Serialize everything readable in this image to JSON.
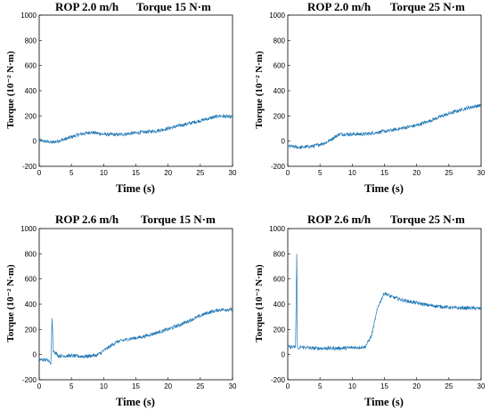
{
  "chart_data": [
    {
      "type": "line",
      "title_rop": "ROP 2.0 m/h",
      "title_torque": "Torque 15 N·m",
      "xlabel": "Time (s)",
      "ylabel": "Torque (10⁻² N·m)",
      "xlim": [
        0,
        30
      ],
      "ylim": [
        -200,
        1000
      ],
      "xticks": [
        0,
        5,
        10,
        15,
        20,
        25,
        30
      ],
      "yticks": [
        -200,
        0,
        200,
        400,
        600,
        800,
        1000
      ],
      "color": "#1f77b4",
      "series": [
        {
          "x": [
            0,
            2,
            4,
            6,
            8,
            10,
            12,
            14,
            16,
            18,
            20,
            22,
            24,
            26,
            28,
            30
          ],
          "y": [
            5,
            -10,
            15,
            50,
            70,
            55,
            50,
            60,
            70,
            80,
            100,
            125,
            150,
            175,
            200,
            190
          ]
        }
      ]
    },
    {
      "type": "line",
      "title_rop": "ROP 2.0 m/h",
      "title_torque": "Torque 25 N·m",
      "xlabel": "Time (s)",
      "ylabel": "Torque (10⁻² N·m)",
      "xlim": [
        0,
        30
      ],
      "ylim": [
        -200,
        1000
      ],
      "xticks": [
        0,
        5,
        10,
        15,
        20,
        25,
        30
      ],
      "yticks": [
        -200,
        0,
        200,
        400,
        600,
        800,
        1000
      ],
      "color": "#1f77b4",
      "series": [
        {
          "x": [
            0,
            2,
            4,
            6,
            8,
            10,
            12,
            14,
            16,
            18,
            20,
            22,
            24,
            26,
            28,
            30
          ],
          "y": [
            -40,
            -50,
            -40,
            -10,
            55,
            55,
            55,
            70,
            85,
            105,
            125,
            160,
            200,
            235,
            265,
            285
          ]
        }
      ]
    },
    {
      "type": "line",
      "title_rop": "ROP 2.6 m/h",
      "title_torque": "Torque 15 N·m",
      "xlabel": "Time (s)",
      "ylabel": "Torque (10⁻² N·m)",
      "xlim": [
        0,
        30
      ],
      "ylim": [
        -200,
        1000
      ],
      "xticks": [
        0,
        5,
        10,
        15,
        20,
        25,
        30
      ],
      "yticks": [
        -200,
        0,
        200,
        400,
        600,
        800,
        1000
      ],
      "color": "#1f77b4",
      "series": [
        {
          "x": [
            0,
            1.5,
            1.8,
            2,
            2.2,
            3,
            5,
            7,
            9,
            10,
            12,
            14,
            16,
            18,
            20,
            22,
            24,
            26,
            28,
            30
          ],
          "y": [
            -40,
            -45,
            -80,
            290,
            30,
            -10,
            -10,
            -15,
            -5,
            30,
            100,
            125,
            140,
            170,
            200,
            240,
            285,
            330,
            355,
            360
          ]
        }
      ]
    },
    {
      "type": "line",
      "title_rop": "ROP 2.6 m/h",
      "title_torque": "Torque 25 N·m",
      "xlabel": "Time (s)",
      "ylabel": "Torque (10⁻² N·m)",
      "xlim": [
        0,
        30
      ],
      "ylim": [
        -200,
        1000
      ],
      "xticks": [
        0,
        5,
        10,
        15,
        20,
        25,
        30
      ],
      "yticks": [
        -200,
        0,
        200,
        400,
        600,
        800,
        1000
      ],
      "color": "#1f77b4",
      "series": [
        {
          "x": [
            0,
            1.2,
            1.4,
            1.5,
            1.7,
            2,
            4,
            6,
            8,
            10,
            12,
            13,
            14,
            15,
            16,
            18,
            20,
            22,
            24,
            26,
            28,
            30
          ],
          "y": [
            60,
            60,
            800,
            60,
            40,
            60,
            50,
            50,
            50,
            55,
            60,
            150,
            380,
            490,
            460,
            430,
            410,
            390,
            380,
            370,
            370,
            365
          ]
        }
      ]
    }
  ]
}
